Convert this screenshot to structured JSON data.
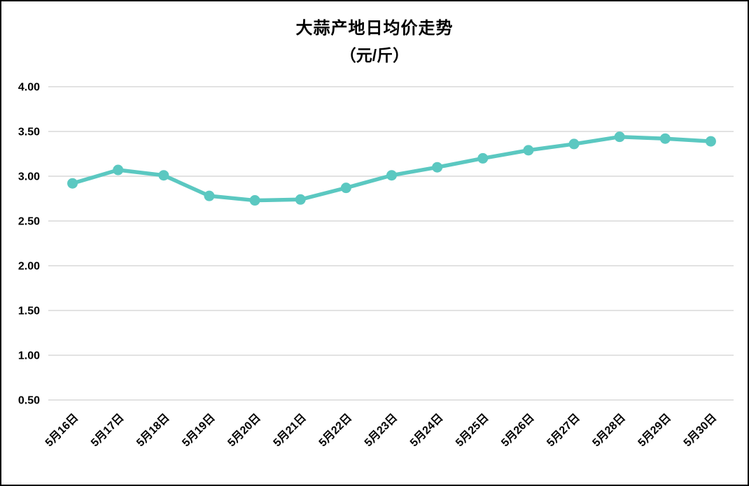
{
  "chart_data": {
    "type": "line",
    "title": "大蒜产地日均价走势",
    "subtitle": "（元/斤）",
    "categories": [
      "5月16日",
      "5月17日",
      "5月18日",
      "5月19日",
      "5月20日",
      "5月21日",
      "5月22日",
      "5月23日",
      "5月24日",
      "5月25日",
      "5月26日",
      "5月27日",
      "5月28日",
      "5月29日",
      "5月30日"
    ],
    "values": [
      2.92,
      3.07,
      3.01,
      2.78,
      2.73,
      2.74,
      2.87,
      3.01,
      3.1,
      3.2,
      3.29,
      3.36,
      3.44,
      3.42,
      3.39
    ],
    "ylim": [
      0.5,
      4.0
    ],
    "yticks": {
      "values": [
        4.0,
        3.5,
        3.0,
        2.5,
        2.0,
        1.5,
        1.0,
        0.5
      ],
      "labels": [
        "4.00",
        "3.50",
        "3.00",
        "2.50",
        "2.00",
        "1.50",
        "1.00",
        "0.50"
      ]
    },
    "grid": true,
    "legend": "none",
    "x_label_rotation_deg": -45,
    "colors": {
      "line": "#5BC8C1",
      "marker": "#5BC8C1",
      "gridline": "#D9D9D9",
      "text": "#000000",
      "background": "#FFFFFF",
      "frame_border": "#000000"
    }
  }
}
